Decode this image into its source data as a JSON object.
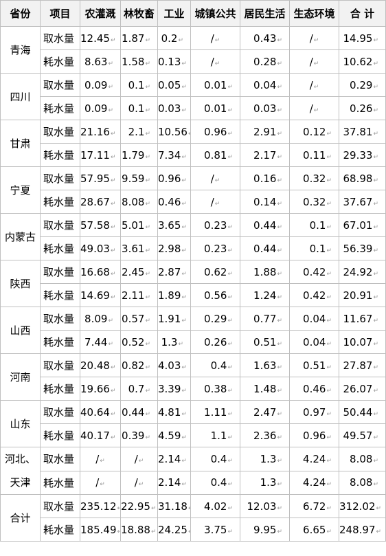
{
  "table": {
    "headers": [
      "省份",
      "项目",
      "农灌溉",
      "林牧畜",
      "工业",
      "城镇公共",
      "居民生活",
      "生态环境",
      "合 计"
    ],
    "groups": [
      {
        "province": "青海",
        "rows": [
          {
            "item": "取水量",
            "values": [
              "12.45",
              "1.87",
              "0.2",
              "/",
              "0.43",
              "/",
              "14.95"
            ]
          },
          {
            "item": "耗水量",
            "values": [
              "8.63",
              "1.58",
              "0.13",
              "/",
              "0.28",
              "/",
              "10.62"
            ]
          }
        ]
      },
      {
        "province": "四川",
        "rows": [
          {
            "item": "取水量",
            "values": [
              "0.09",
              "0.1",
              "0.05",
              "0.01",
              "0.04",
              "/",
              "0.29"
            ]
          },
          {
            "item": "耗水量",
            "values": [
              "0.09",
              "0.1",
              "0.03",
              "0.01",
              "0.03",
              "/",
              "0.26"
            ]
          }
        ]
      },
      {
        "province": "甘肃",
        "rows": [
          {
            "item": "取水量",
            "values": [
              "21.16",
              "2.1",
              "10.56",
              "0.96",
              "2.91",
              "0.12",
              "37.81"
            ]
          },
          {
            "item": "耗水量",
            "values": [
              "17.11",
              "1.79",
              "7.34",
              "0.81",
              "2.17",
              "0.11",
              "29.33"
            ]
          }
        ]
      },
      {
        "province": "宁夏",
        "rows": [
          {
            "item": "取水量",
            "values": [
              "57.95",
              "9.59",
              "0.96",
              "/",
              "0.16",
              "0.32",
              "68.98"
            ]
          },
          {
            "item": "耗水量",
            "values": [
              "28.67",
              "8.08",
              "0.46",
              "/",
              "0.14",
              "0.32",
              "37.67"
            ]
          }
        ]
      },
      {
        "province": "内蒙古",
        "rows": [
          {
            "item": "取水量",
            "values": [
              "57.58",
              "5.01",
              "3.65",
              "0.23",
              "0.44",
              "0.1",
              "67.01"
            ]
          },
          {
            "item": "耗水量",
            "values": [
              "49.03",
              "3.61",
              "2.98",
              "0.23",
              "0.44",
              "0.1",
              "56.39"
            ]
          }
        ]
      },
      {
        "province": "陕西",
        "rows": [
          {
            "item": "取水量",
            "values": [
              "16.68",
              "2.45",
              "2.87",
              "0.62",
              "1.88",
              "0.42",
              "24.92"
            ]
          },
          {
            "item": "耗水量",
            "values": [
              "14.69",
              "2.11",
              "1.89",
              "0.56",
              "1.24",
              "0.42",
              "20.91"
            ]
          }
        ]
      },
      {
        "province": "山西",
        "rows": [
          {
            "item": "取水量",
            "values": [
              "8.09",
              "0.57",
              "1.91",
              "0.29",
              "0.77",
              "0.04",
              "11.67"
            ]
          },
          {
            "item": "耗水量",
            "values": [
              "7.44",
              "0.52",
              "1.3",
              "0.26",
              "0.51",
              "0.04",
              "10.07"
            ]
          }
        ]
      },
      {
        "province": "河南",
        "rows": [
          {
            "item": "取水量",
            "values": [
              "20.48",
              "0.82",
              "4.03",
              "0.4",
              "1.63",
              "0.51",
              "27.87"
            ]
          },
          {
            "item": "耗水量",
            "values": [
              "19.66",
              "0.7",
              "3.39",
              "0.38",
              "1.48",
              "0.46",
              "26.07"
            ]
          }
        ]
      },
      {
        "province": "山东",
        "rows": [
          {
            "item": "取水量",
            "values": [
              "40.64",
              "0.44",
              "4.81",
              "1.11",
              "2.47",
              "0.97",
              "50.44"
            ]
          },
          {
            "item": "耗水量",
            "values": [
              "40.17",
              "0.39",
              "4.59",
              "1.1",
              "2.36",
              "0.96",
              "49.57"
            ]
          }
        ]
      },
      {
        "province": "河北、天津",
        "rows": [
          {
            "item": "取水量",
            "values": [
              "/",
              "/",
              "2.14",
              "0.4",
              "1.3",
              "4.24",
              "8.08"
            ]
          },
          {
            "item": "耗水量",
            "values": [
              "/",
              "/",
              "2.14",
              "0.4",
              "1.3",
              "4.24",
              "8.08"
            ]
          }
        ]
      },
      {
        "province": "合计",
        "rows": [
          {
            "item": "取水量",
            "values": [
              "235.12",
              "22.95",
              "31.18",
              "4.02",
              "12.03",
              "6.72",
              "312.02"
            ]
          },
          {
            "item": "耗水量",
            "values": [
              "185.49",
              "18.88",
              "24.25",
              "3.75",
              "9.95",
              "6.65",
              "248.97"
            ]
          }
        ]
      }
    ]
  }
}
